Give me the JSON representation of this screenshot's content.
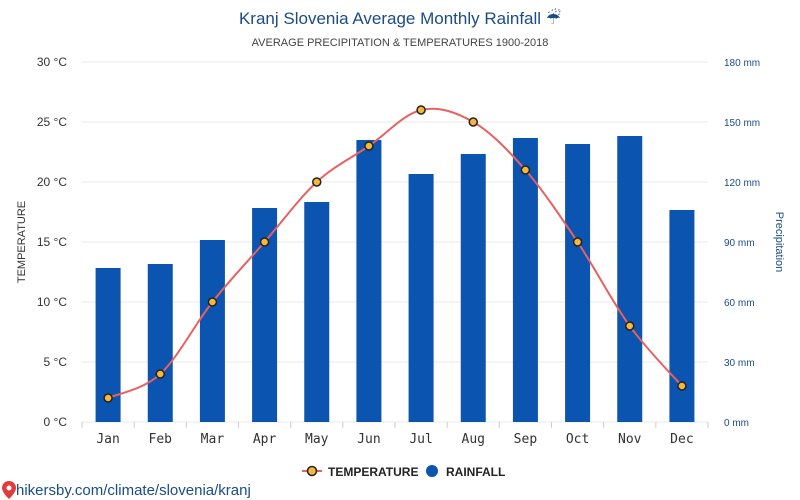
{
  "chart_data": {
    "type": "bar",
    "title": "Kranj Slovenia Average Monthly Rainfall ☔",
    "subtitle": "AVERAGE PRECIPITATION & TEMPERATURES 1900-2018",
    "categories": [
      "Jan",
      "Feb",
      "Mar",
      "Apr",
      "May",
      "Jun",
      "Jul",
      "Aug",
      "Sep",
      "Oct",
      "Nov",
      "Dec"
    ],
    "series": [
      {
        "name": "TEMPERATURE",
        "type": "line",
        "axis": "left",
        "values": [
          2,
          4,
          10,
          15,
          20,
          23,
          26,
          25,
          21,
          15,
          8,
          3
        ]
      },
      {
        "name": "RAINFALL",
        "type": "bar",
        "axis": "right",
        "values": [
          77,
          79,
          91,
          107,
          110,
          141,
          124,
          134,
          142,
          139,
          143,
          106
        ]
      }
    ],
    "y_left": {
      "title": "TEMPERATURE",
      "ticks": [
        "0 °C",
        "5 °C",
        "10 °C",
        "15 °C",
        "20 °C",
        "25 °C",
        "30 °C"
      ],
      "range": [
        0,
        30
      ]
    },
    "y_right": {
      "title": "Precipitation",
      "ticks": [
        "0 mm",
        "30 mm",
        "60 mm",
        "90 mm",
        "120 mm",
        "150 mm",
        "180 mm"
      ],
      "range": [
        0,
        180
      ]
    },
    "legend_position": "bottom-center",
    "grid": true,
    "colors": {
      "bar": "#0b54b0",
      "line": "#e86161",
      "marker_fill": "#f6b73c",
      "marker_stroke": "#222222",
      "title": "#1a4c86",
      "grid": "#e8e8e8"
    }
  },
  "footer": {
    "source": "hikersby.com/climate/slovenia/kranj",
    "icon": "map-pin-icon"
  }
}
